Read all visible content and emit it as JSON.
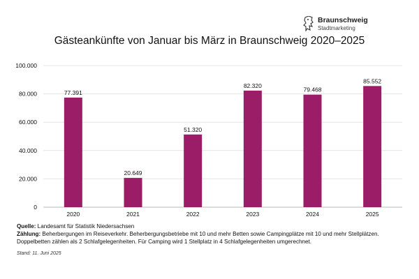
{
  "brand": {
    "name": "Braunschweig",
    "subtitle": "Stadtmarketing",
    "icon": "lion-crest-icon"
  },
  "chart_data": {
    "type": "bar",
    "title": "Gästeankünfte von Januar bis März in Braunschweig 2020–2025",
    "xlabel": "",
    "ylabel": "",
    "categories": [
      "2020",
      "2021",
      "2022",
      "2023",
      "2024",
      "2025"
    ],
    "values": [
      77391,
      20649,
      51320,
      82320,
      79468,
      85552
    ],
    "value_labels": [
      "77.391",
      "20.649",
      "51.320",
      "82.320",
      "79.468",
      "85.552"
    ],
    "y_ticks": [
      0,
      20000,
      40000,
      60000,
      80000,
      100000
    ],
    "y_tick_labels": [
      "0",
      "20.000",
      "40.000",
      "60.000",
      "80.000",
      "100.000"
    ],
    "ylim": [
      0,
      100000
    ],
    "grid": true,
    "legend": "none",
    "bar_color": "#9b1d68"
  },
  "footer": {
    "source_label": "Quelle:",
    "source_text": " Landesamt für Statistik Niedersachsen",
    "count_label": "Zählung:",
    "count_text": " Beherbergungen im Reiseverkehr. Beherbergungsbetriebe mit 10 und mehr Betten sowie Campingplätze mit 10 und mehr Stellplätzen. Doppelbetten zählen als 2 Schlafgelegenheiten. Für Camping wird 1 Stellplatz in 4 Schlafgelegenheiten umgerechnet.",
    "stand": "Stand: 11. Juni 2025"
  }
}
